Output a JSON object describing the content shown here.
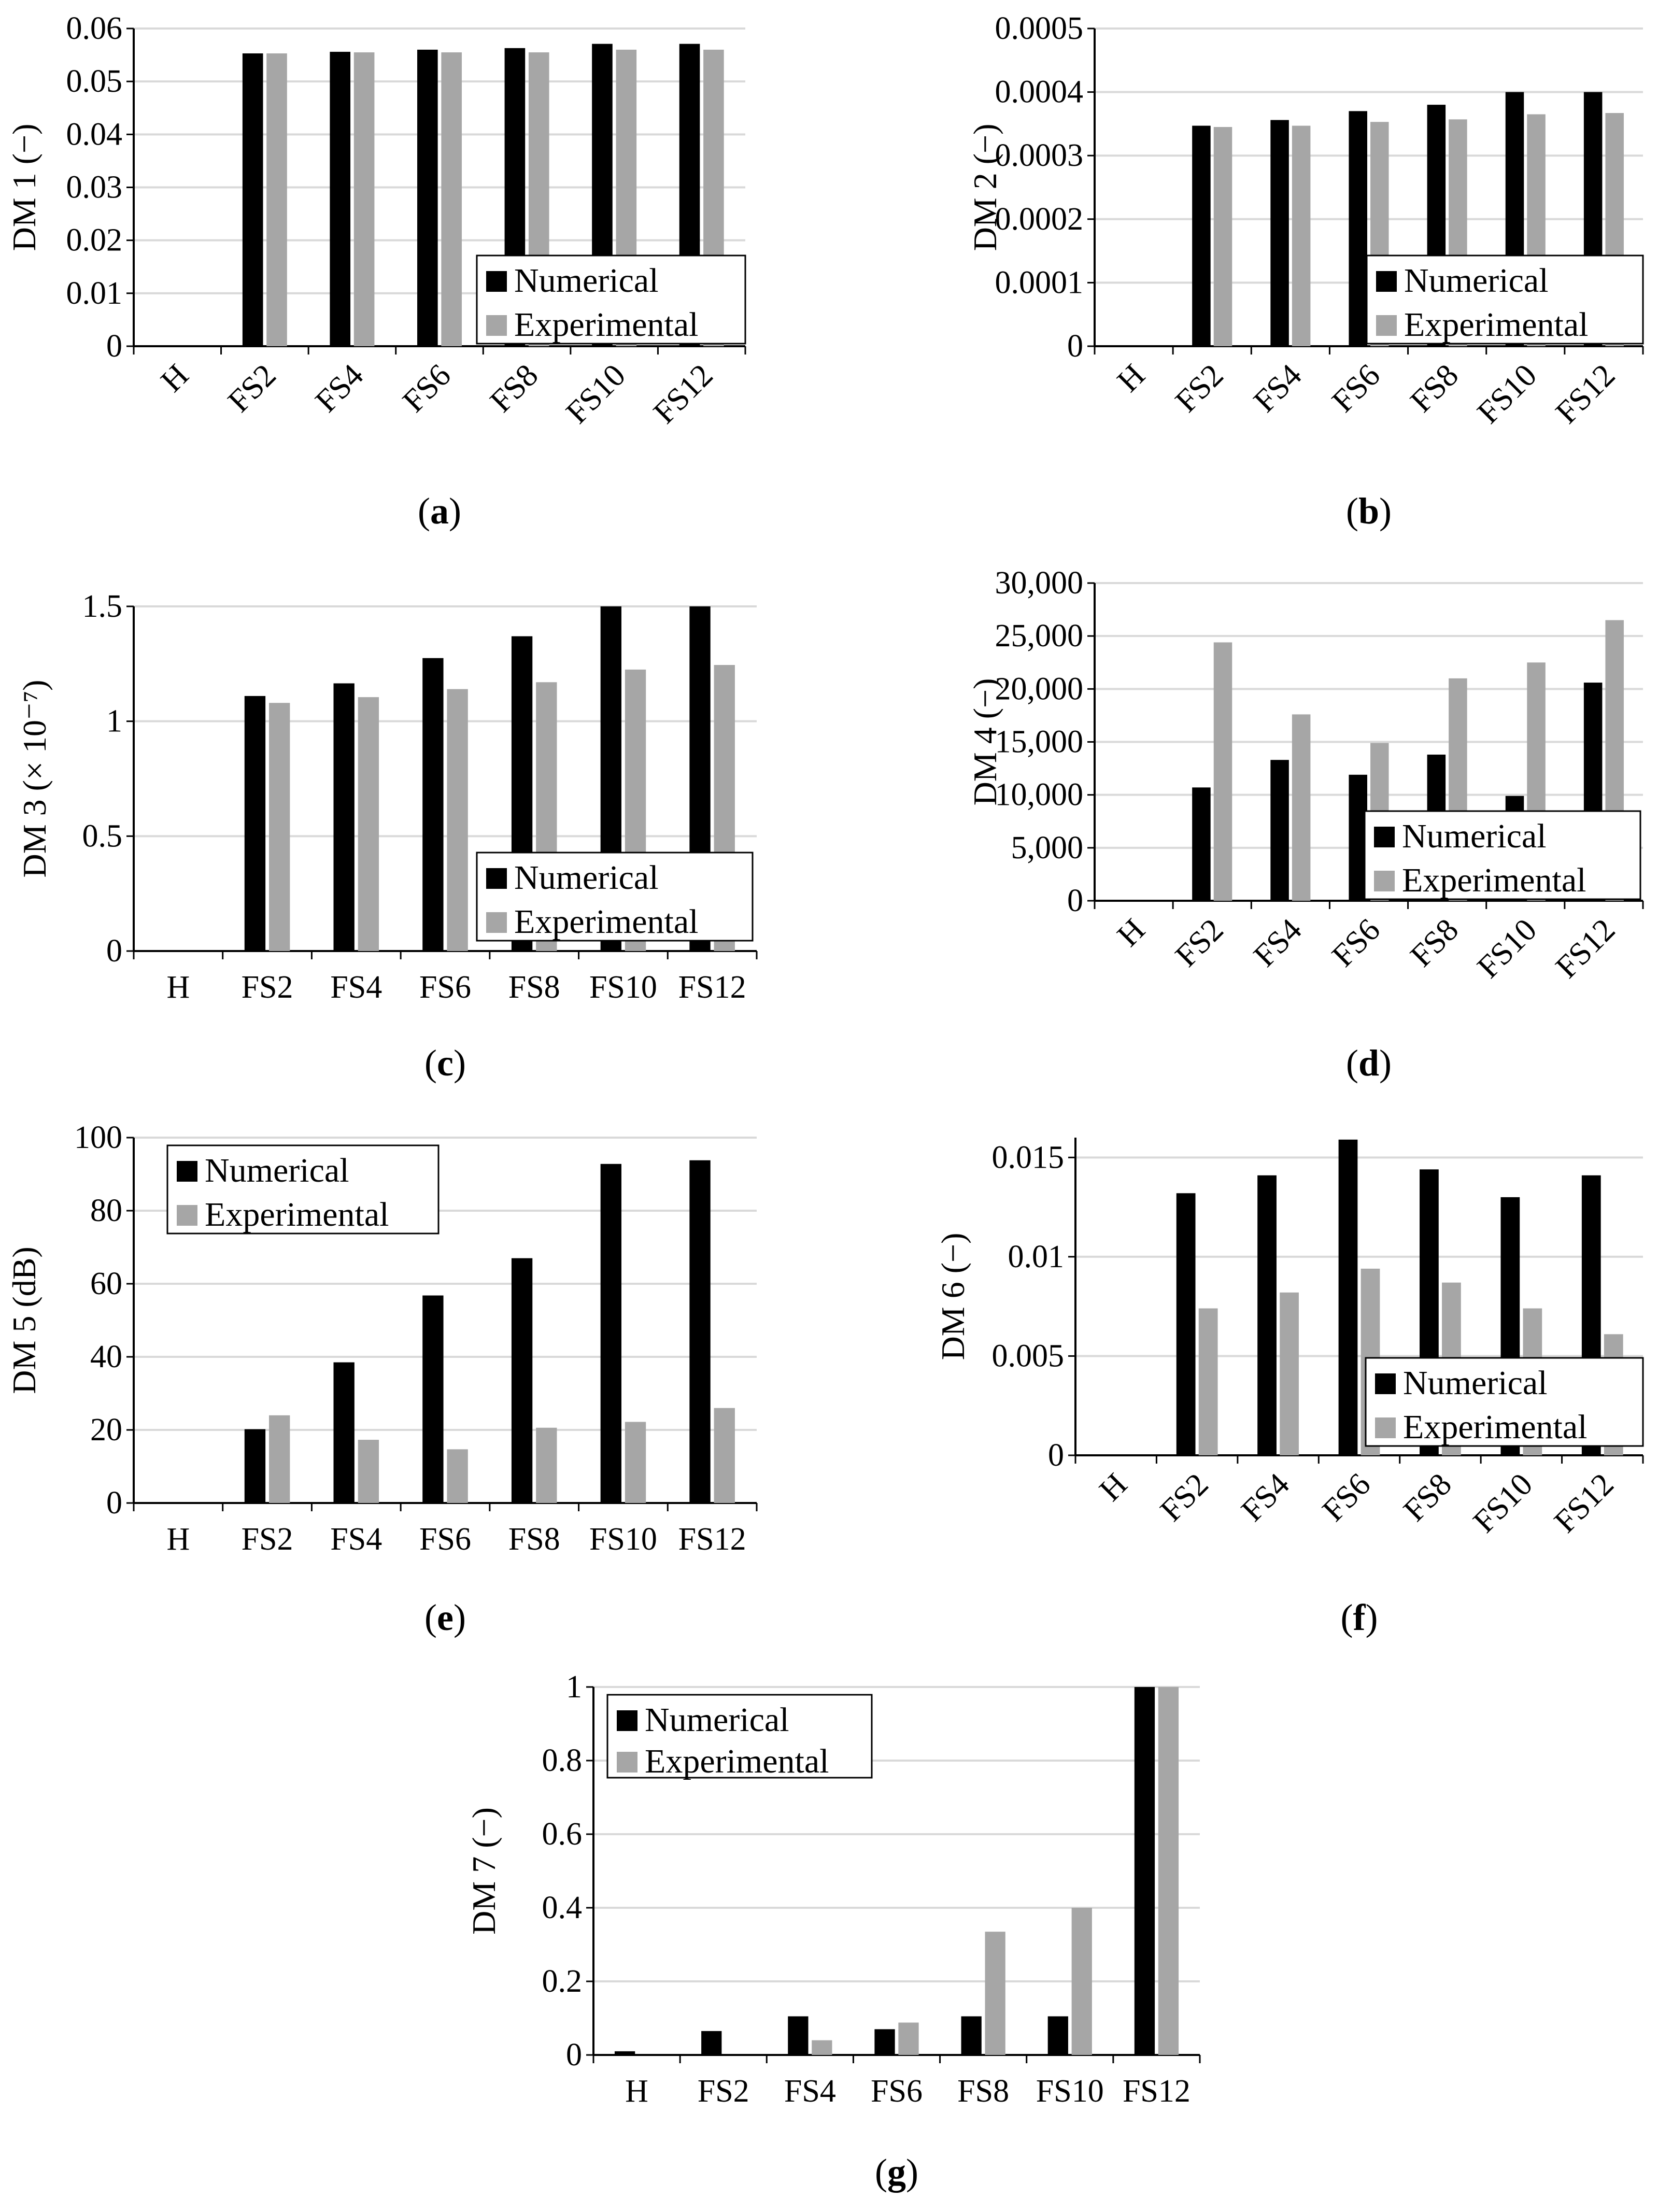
{
  "chart_data": [
    {
      "type": "bar",
      "panel": "a",
      "ylabel": "DM 1 (−)",
      "categories": [
        "H",
        "FS2",
        "FS4",
        "FS6",
        "FS8",
        "FS10",
        "FS12"
      ],
      "ylim": [
        0,
        0.06
      ],
      "yticks": [
        "0",
        "0.01",
        "0.02",
        "0.03",
        "0.04",
        "0.05",
        "0.06"
      ],
      "series": [
        {
          "name": "Numerical",
          "color": "#000000",
          "values": [
            0,
            0.0553,
            0.0556,
            0.056,
            0.0563,
            0.0571,
            0.0571
          ]
        },
        {
          "name": "Experimental",
          "color": "#a6a6a6",
          "values": [
            0,
            0.0553,
            0.0555,
            0.0555,
            0.0555,
            0.056,
            0.056
          ]
        }
      ],
      "legend": "bottom-right",
      "rotate_labels": true
    },
    {
      "type": "bar",
      "panel": "b",
      "ylabel": "DM 2 (−)",
      "categories": [
        "H",
        "FS2",
        "FS4",
        "FS6",
        "FS8",
        "FS10",
        "FS12"
      ],
      "ylim": [
        0,
        0.0005
      ],
      "yticks": [
        "0",
        "0.0001",
        "0.0002",
        "0.0003",
        "0.0004",
        "0.0005"
      ],
      "series": [
        {
          "name": "Numerical",
          "color": "#000000",
          "values": [
            0,
            0.000347,
            0.000356,
            0.00037,
            0.00038,
            0.0004,
            0.0004
          ]
        },
        {
          "name": "Experimental",
          "color": "#a6a6a6",
          "values": [
            0,
            0.000345,
            0.000347,
            0.000353,
            0.000357,
            0.000365,
            0.000367
          ]
        }
      ],
      "legend": "bottom-right",
      "rotate_labels": true
    },
    {
      "type": "bar",
      "panel": "c",
      "ylabel": "DM 3 (× 10⁻⁷)",
      "categories": [
        "H",
        "FS2",
        "FS4",
        "FS6",
        "FS8",
        "FS10",
        "FS12"
      ],
      "ylim": [
        0,
        1.5
      ],
      "yticks": [
        "0",
        "0.5",
        "1",
        "1.5"
      ],
      "series": [
        {
          "name": "Numerical",
          "color": "#000000",
          "values": [
            0,
            1.11,
            1.165,
            1.275,
            1.37,
            1.525,
            1.525
          ]
        },
        {
          "name": "Experimental",
          "color": "#a6a6a6",
          "values": [
            0,
            1.08,
            1.105,
            1.14,
            1.17,
            1.225,
            1.245
          ]
        }
      ],
      "legend": "bottom-right",
      "rotate_labels": false
    },
    {
      "type": "bar",
      "panel": "d",
      "ylabel": "DM 4 (−)",
      "categories": [
        "H",
        "FS2",
        "FS4",
        "FS6",
        "FS8",
        "FS10",
        "FS12"
      ],
      "ylim": [
        0,
        30000
      ],
      "yticks": [
        "0",
        "5,000",
        "10,000",
        "15,000",
        "20,000",
        "25,000",
        "30,000"
      ],
      "series": [
        {
          "name": "Numerical",
          "color": "#000000",
          "values": [
            0,
            10700,
            13300,
            11900,
            13800,
            9900,
            20600
          ]
        },
        {
          "name": "Experimental",
          "color": "#a6a6a6",
          "values": [
            0,
            24400,
            17600,
            14900,
            21000,
            22500,
            26500
          ]
        }
      ],
      "legend": "bottom-right",
      "rotate_labels": true
    },
    {
      "type": "bar",
      "panel": "e",
      "ylabel": "DM 5 (dB)",
      "categories": [
        "H",
        "FS2",
        "FS4",
        "FS6",
        "FS8",
        "FS10",
        "FS12"
      ],
      "ylim": [
        0,
        100
      ],
      "yticks": [
        "0",
        "20",
        "40",
        "60",
        "80",
        "100"
      ],
      "series": [
        {
          "name": "Numerical",
          "color": "#000000",
          "values": [
            0,
            20.2,
            38.5,
            56.8,
            67,
            92.8,
            93.8
          ]
        },
        {
          "name": "Experimental",
          "color": "#a6a6a6",
          "values": [
            0,
            24,
            17.3,
            14.7,
            20.6,
            22.2,
            26
          ]
        }
      ],
      "legend": "top-left",
      "rotate_labels": false
    },
    {
      "type": "bar",
      "panel": "f",
      "ylabel": "DM 6 (−)",
      "categories": [
        "H",
        "FS2",
        "FS4",
        "FS6",
        "FS8",
        "FS10",
        "FS12"
      ],
      "ylim": [
        0,
        0.016
      ],
      "yticks": [
        "0",
        "0.005",
        "0.01",
        "0.015"
      ],
      "series": [
        {
          "name": "Numerical",
          "color": "#000000",
          "values": [
            0,
            0.0132,
            0.0141,
            0.0159,
            0.0144,
            0.013,
            0.0141
          ]
        },
        {
          "name": "Experimental",
          "color": "#a6a6a6",
          "values": [
            0,
            0.0074,
            0.0082,
            0.0094,
            0.0087,
            0.0074,
            0.0061
          ]
        }
      ],
      "legend": "bottom-right",
      "rotate_labels": true
    },
    {
      "type": "bar",
      "panel": "g",
      "ylabel": "DM 7 (−)",
      "categories": [
        "H",
        "FS2",
        "FS4",
        "FS6",
        "FS8",
        "FS10",
        "FS12"
      ],
      "ylim": [
        0,
        1
      ],
      "yticks": [
        "0",
        "0.2",
        "0.4",
        "0.6",
        "0.8",
        "1"
      ],
      "series": [
        {
          "name": "Numerical",
          "color": "#000000",
          "values": [
            0.01,
            0.065,
            0.105,
            0.07,
            0.105,
            0.105,
            1
          ]
        },
        {
          "name": "Experimental",
          "color": "#a6a6a6",
          "values": [
            0,
            0,
            0.04,
            0.088,
            0.335,
            0.4,
            1
          ]
        }
      ],
      "legend": "top-left",
      "rotate_labels": false
    }
  ]
}
